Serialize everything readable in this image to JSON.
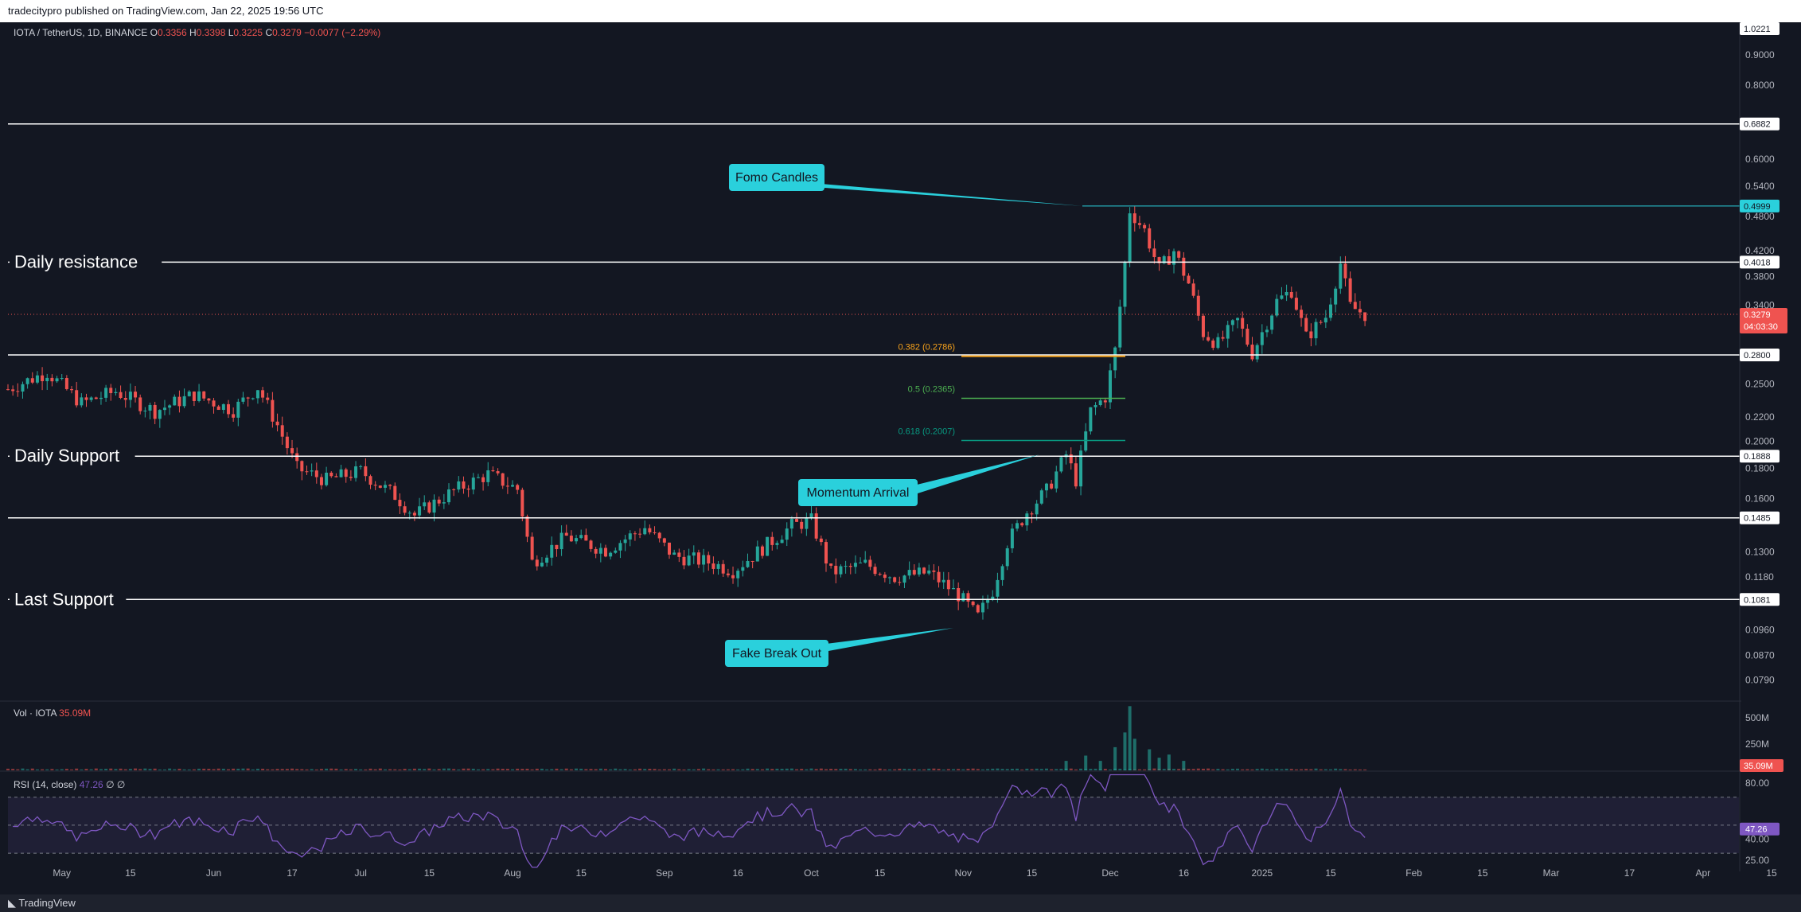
{
  "publisher_line": "tradecitypro published on TradingView.com, Jan 22, 2025 19:56 UTC",
  "footer": {
    "brand": "TradingView"
  },
  "colors": {
    "background": "#131722",
    "up": "#26a69a",
    "down": "#ef5350",
    "rsi": "#7e57c2",
    "annotation": "#2ad0dc",
    "fib_0382": "#f7a21b",
    "fib_05": "#4caf50",
    "fib_0618": "#089981"
  },
  "chart_data": {
    "type": "candlestick",
    "symbol_line": {
      "name": "IOTA / TetherUS, 1D, BINANCE",
      "o_label": "O",
      "o": "0.3356",
      "h_label": "H",
      "h": "0.3398",
      "l_label": "L",
      "l": "0.3225",
      "c_label": "C",
      "c": "0.3279",
      "change": "−0.0077 (−2.29%)"
    },
    "scale": "log",
    "ylim": [
      0.073,
      1.0221
    ],
    "price_ticks": [
      "0.9000",
      "0.8000",
      "0.6000",
      "0.5400",
      "0.4800",
      "0.4200",
      "0.3800",
      "0.3400",
      "0.2500",
      "0.2200",
      "0.2000",
      "0.1800",
      "0.1600",
      "0.1300",
      "0.1180",
      "0.0960",
      "0.0870",
      "0.0790"
    ],
    "price_tick_values": [
      0.9,
      0.8,
      0.6,
      0.54,
      0.48,
      0.42,
      0.38,
      0.34,
      0.25,
      0.22,
      0.2,
      0.18,
      0.16,
      0.13,
      0.118,
      0.096,
      0.087,
      0.079
    ],
    "top_label": "1.0221",
    "x_axis_labels": [
      "May",
      "15",
      "Jun",
      "17",
      "Jul",
      "15",
      "Aug",
      "15",
      "Sep",
      "16",
      "Oct",
      "15",
      "Nov",
      "15",
      "Dec",
      "16",
      "2025",
      "15",
      "Feb",
      "15",
      "Mar",
      "17",
      "Apr",
      "15"
    ],
    "x_axis_dates": [
      "2024-05-01",
      "2024-05-15",
      "2024-06-01",
      "2024-06-17",
      "2024-07-01",
      "2024-07-15",
      "2024-08-01",
      "2024-08-15",
      "2024-09-01",
      "2024-09-16",
      "2024-10-01",
      "2024-10-15",
      "2024-11-01",
      "2024-11-15",
      "2024-12-01",
      "2024-12-16",
      "2025-01-01",
      "2025-01-15",
      "2025-02-01",
      "2025-02-15",
      "2025-03-01",
      "2025-03-17",
      "2025-04-01",
      "2025-04-15"
    ],
    "x_start_date": "2024-04-20",
    "price_series": [
      [
        "2024-04-20",
        0.245
      ],
      [
        "2024-04-28",
        0.262
      ],
      [
        "2024-05-05",
        0.232
      ],
      [
        "2024-05-12",
        0.243
      ],
      [
        "2024-05-20",
        0.225
      ],
      [
        "2024-05-28",
        0.24
      ],
      [
        "2024-06-05",
        0.226
      ],
      [
        "2024-06-10",
        0.247
      ],
      [
        "2024-06-14",
        0.213
      ],
      [
        "2024-06-18",
        0.18
      ],
      [
        "2024-06-24",
        0.172
      ],
      [
        "2024-07-01",
        0.178
      ],
      [
        "2024-07-08",
        0.162
      ],
      [
        "2024-07-12",
        0.15
      ],
      [
        "2024-07-20",
        0.165
      ],
      [
        "2024-07-27",
        0.176
      ],
      [
        "2024-08-02",
        0.166
      ],
      [
        "2024-08-05",
        0.125
      ],
      [
        "2024-08-12",
        0.138
      ],
      [
        "2024-08-20",
        0.131
      ],
      [
        "2024-08-28",
        0.143
      ],
      [
        "2024-09-03",
        0.128
      ],
      [
        "2024-09-10",
        0.125
      ],
      [
        "2024-09-15",
        0.121
      ],
      [
        "2024-09-20",
        0.13
      ],
      [
        "2024-09-27",
        0.144
      ],
      [
        "2024-10-01",
        0.147
      ],
      [
        "2024-10-05",
        0.12
      ],
      [
        "2024-10-12",
        0.124
      ],
      [
        "2024-10-18",
        0.118
      ],
      [
        "2024-10-25",
        0.12
      ],
      [
        "2024-10-31",
        0.11
      ],
      [
        "2024-11-04",
        0.101
      ],
      [
        "2024-11-07",
        0.112
      ],
      [
        "2024-11-10",
        0.135
      ],
      [
        "2024-11-14",
        0.152
      ],
      [
        "2024-11-18",
        0.165
      ],
      [
        "2024-11-22",
        0.19
      ],
      [
        "2024-11-24",
        0.172
      ],
      [
        "2024-11-27",
        0.225
      ],
      [
        "2024-11-30",
        0.238
      ],
      [
        "2024-12-02",
        0.285
      ],
      [
        "2024-12-04",
        0.4
      ],
      [
        "2024-12-05",
        0.492
      ],
      [
        "2024-12-08",
        0.455
      ],
      [
        "2024-12-11",
        0.39
      ],
      [
        "2024-12-14",
        0.42
      ],
      [
        "2024-12-17",
        0.37
      ],
      [
        "2024-12-20",
        0.305
      ],
      [
        "2024-12-23",
        0.292
      ],
      [
        "2024-12-27",
        0.32
      ],
      [
        "2024-12-30",
        0.282
      ],
      [
        "2025-01-04",
        0.345
      ],
      [
        "2025-01-07",
        0.36
      ],
      [
        "2025-01-10",
        0.3
      ],
      [
        "2025-01-14",
        0.325
      ],
      [
        "2025-01-17",
        0.4
      ],
      [
        "2025-01-19",
        0.338
      ],
      [
        "2025-01-22",
        0.328
      ]
    ],
    "horizontal_levels": [
      {
        "label": "",
        "value": "0.6882",
        "price": 0.6882
      },
      {
        "label": "Daily resistance",
        "value": "0.4018",
        "price": 0.4018
      },
      {
        "label": "",
        "value": "0.2800",
        "price": 0.28
      },
      {
        "label": "Daily Support",
        "value": "0.1888",
        "price": 0.1888
      },
      {
        "label": "",
        "value": "0.1485",
        "price": 0.1485
      },
      {
        "label": "Last Support",
        "value": "0.1081",
        "price": 0.1081
      }
    ],
    "fomo_level": {
      "value": "0.4999",
      "price": 0.4999
    },
    "current_price": {
      "value": "0.3279",
      "countdown": "04:03:30",
      "price": 0.3279
    },
    "fib_levels": [
      {
        "label": "0.382 (0.2786)",
        "price": 0.2786
      },
      {
        "label": "0.5 (0.2365)",
        "price": 0.2365
      },
      {
        "label": "0.618 (0.2007)",
        "price": 0.2007
      }
    ],
    "annotations": [
      {
        "text": "Fomo Candles"
      },
      {
        "text": "Momentum Arrival"
      },
      {
        "text": "Fake Break Out"
      }
    ],
    "volume": {
      "title": "Vol · IOTA",
      "value": "35.09M",
      "ticks": [
        "500M",
        "250M"
      ],
      "tick_values": [
        500,
        250
      ],
      "max": 620,
      "spikes": [
        [
          "2024-11-22",
          90
        ],
        [
          "2024-11-26",
          140
        ],
        [
          "2024-11-29",
          90
        ],
        [
          "2024-12-02",
          220
        ],
        [
          "2024-12-04",
          360
        ],
        [
          "2024-12-05",
          610
        ],
        [
          "2024-12-06",
          300
        ],
        [
          "2024-12-09",
          200
        ],
        [
          "2024-12-11",
          120
        ],
        [
          "2024-12-13",
          150
        ],
        [
          "2024-12-16",
          90
        ]
      ]
    },
    "rsi": {
      "title": "RSI (14, close)",
      "value": "47.26",
      "extra": "∅ ∅",
      "ticks": [
        "80.00",
        "40.00",
        "25.00"
      ],
      "tick_values": [
        80,
        40,
        25
      ],
      "ylim": [
        17,
        88
      ],
      "upper": 70,
      "mid": 50,
      "lower": 30
    }
  }
}
